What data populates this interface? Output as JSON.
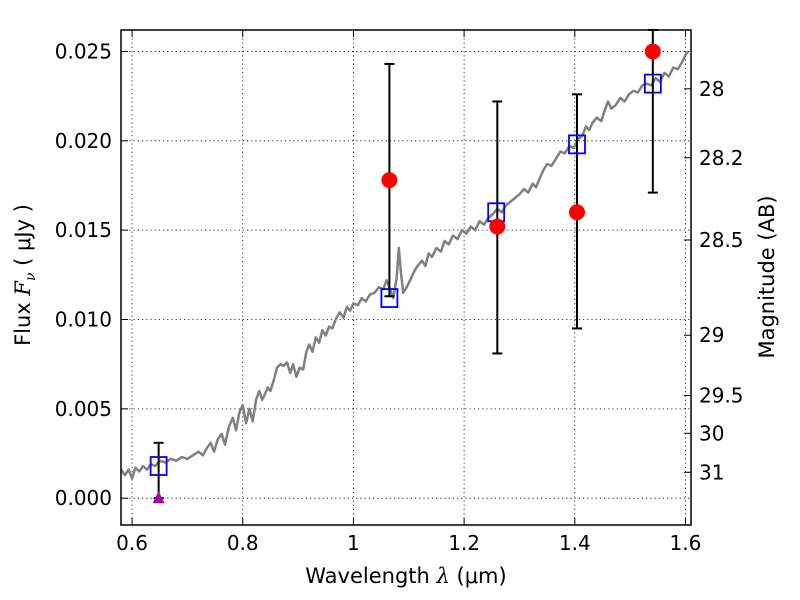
{
  "chart_data": {
    "type": "scatter",
    "xlabel": {
      "prefix": "Wavelength  ",
      "symbol": "λ",
      "unit": " (μm)"
    },
    "ylabel": {
      "prefix": "Flux  ",
      "symbol": "F",
      "subscript": "ν",
      "unit": "  ( μJy )"
    },
    "y2label": "Magnitude (AB)",
    "xlim": [
      0.58,
      1.61
    ],
    "ylim": [
      -0.0015,
      0.0262
    ],
    "grid": true,
    "x_ticks": [
      {
        "value": 0.6,
        "label": "0.6"
      },
      {
        "value": 0.8,
        "label": "0.8"
      },
      {
        "value": 1.0,
        "label": "1"
      },
      {
        "value": 1.2,
        "label": "1.2"
      },
      {
        "value": 1.4,
        "label": "1.4"
      },
      {
        "value": 1.6,
        "label": "1.6"
      }
    ],
    "y_ticks": [
      {
        "value": 0.0,
        "label": "0.000"
      },
      {
        "value": 0.005,
        "label": "0.005"
      },
      {
        "value": 0.01,
        "label": "0.010"
      },
      {
        "value": 0.015,
        "label": "0.015"
      },
      {
        "value": 0.02,
        "label": "0.020"
      },
      {
        "value": 0.025,
        "label": "0.025"
      }
    ],
    "y2_ticks": [
      {
        "flux": 0.02291,
        "label": "28"
      },
      {
        "flux": 0.01905,
        "label": "28.2"
      },
      {
        "flux": 0.01445,
        "label": "28.5"
      },
      {
        "flux": 0.00912,
        "label": "29"
      },
      {
        "flux": 0.00575,
        "label": "29.5"
      },
      {
        "flux": 0.00363,
        "label": "30"
      },
      {
        "flux": 0.00145,
        "label": "31"
      }
    ],
    "series": [
      {
        "kind": "line",
        "color": "#808080",
        "points": [
          [
            0.58,
            0.0016
          ],
          [
            0.587,
            0.0013
          ],
          [
            0.594,
            0.0016
          ],
          [
            0.6,
            0.0011
          ],
          [
            0.606,
            0.0017
          ],
          [
            0.613,
            0.0015
          ],
          [
            0.62,
            0.0018
          ],
          [
            0.627,
            0.0016
          ],
          [
            0.634,
            0.0019
          ],
          [
            0.642,
            0.0018
          ],
          [
            0.65,
            0.0021
          ],
          [
            0.66,
            0.002
          ],
          [
            0.67,
            0.0022
          ],
          [
            0.68,
            0.0021
          ],
          [
            0.69,
            0.0023
          ],
          [
            0.7,
            0.0022
          ],
          [
            0.71,
            0.0024
          ],
          [
            0.72,
            0.0026
          ],
          [
            0.728,
            0.0024
          ],
          [
            0.735,
            0.0028
          ],
          [
            0.742,
            0.0031
          ],
          [
            0.748,
            0.0026
          ],
          [
            0.755,
            0.0033
          ],
          [
            0.762,
            0.0036
          ],
          [
            0.768,
            0.003
          ],
          [
            0.775,
            0.004
          ],
          [
            0.782,
            0.0045
          ],
          [
            0.788,
            0.0038
          ],
          [
            0.794,
            0.0048
          ],
          [
            0.8,
            0.0052
          ],
          [
            0.806,
            0.0042
          ],
          [
            0.812,
            0.005
          ],
          [
            0.818,
            0.0043
          ],
          [
            0.824,
            0.0055
          ],
          [
            0.83,
            0.006
          ],
          [
            0.835,
            0.0055
          ],
          [
            0.84,
            0.0058
          ],
          [
            0.845,
            0.0062
          ],
          [
            0.85,
            0.006
          ],
          [
            0.856,
            0.0066
          ],
          [
            0.862,
            0.0073
          ],
          [
            0.868,
            0.0075
          ],
          [
            0.874,
            0.0074
          ],
          [
            0.88,
            0.0076
          ],
          [
            0.886,
            0.007
          ],
          [
            0.891,
            0.0075
          ],
          [
            0.897,
            0.0068
          ],
          [
            0.903,
            0.0073
          ],
          [
            0.909,
            0.0072
          ],
          [
            0.915,
            0.0082
          ],
          [
            0.92,
            0.0086
          ],
          [
            0.926,
            0.0082
          ],
          [
            0.932,
            0.009
          ],
          [
            0.938,
            0.0087
          ],
          [
            0.944,
            0.0094
          ],
          [
            0.95,
            0.0091
          ],
          [
            0.956,
            0.0096
          ],
          [
            0.962,
            0.0095
          ],
          [
            0.968,
            0.01
          ],
          [
            0.975,
            0.0104
          ],
          [
            0.982,
            0.0101
          ],
          [
            0.988,
            0.0107
          ],
          [
            0.994,
            0.0105
          ],
          [
            1.0,
            0.0109
          ],
          [
            1.008,
            0.0108
          ],
          [
            1.015,
            0.0112
          ],
          [
            1.022,
            0.011
          ],
          [
            1.03,
            0.0114
          ],
          [
            1.038,
            0.0115
          ],
          [
            1.046,
            0.0118
          ],
          [
            1.054,
            0.0117
          ],
          [
            1.06,
            0.0122
          ],
          [
            1.066,
            0.0117
          ],
          [
            1.072,
            0.0112
          ],
          [
            1.078,
            0.0123
          ],
          [
            1.082,
            0.014
          ],
          [
            1.086,
            0.0126
          ],
          [
            1.09,
            0.0115
          ],
          [
            1.096,
            0.0118
          ],
          [
            1.104,
            0.0123
          ],
          [
            1.11,
            0.0127
          ],
          [
            1.116,
            0.013
          ],
          [
            1.124,
            0.0133
          ],
          [
            1.13,
            0.013
          ],
          [
            1.136,
            0.0137
          ],
          [
            1.142,
            0.0135
          ],
          [
            1.15,
            0.014
          ],
          [
            1.158,
            0.0138
          ],
          [
            1.165,
            0.0144
          ],
          [
            1.172,
            0.0142
          ],
          [
            1.18,
            0.0147
          ],
          [
            1.188,
            0.0145
          ],
          [
            1.196,
            0.015
          ],
          [
            1.204,
            0.0148
          ],
          [
            1.212,
            0.0152
          ],
          [
            1.22,
            0.015
          ],
          [
            1.228,
            0.0155
          ],
          [
            1.236,
            0.0153
          ],
          [
            1.244,
            0.0157
          ],
          [
            1.252,
            0.0159
          ],
          [
            1.26,
            0.0162
          ],
          [
            1.268,
            0.016
          ],
          [
            1.276,
            0.0164
          ],
          [
            1.284,
            0.0166
          ],
          [
            1.292,
            0.0168
          ],
          [
            1.3,
            0.017
          ],
          [
            1.308,
            0.0173
          ],
          [
            1.316,
            0.0171
          ],
          [
            1.324,
            0.0176
          ],
          [
            1.33,
            0.0174
          ],
          [
            1.338,
            0.018
          ],
          [
            1.344,
            0.0184
          ],
          [
            1.35,
            0.0187
          ],
          [
            1.358,
            0.0186
          ],
          [
            1.366,
            0.019
          ],
          [
            1.374,
            0.0194
          ],
          [
            1.382,
            0.0193
          ],
          [
            1.39,
            0.0197
          ],
          [
            1.398,
            0.0196
          ],
          [
            1.406,
            0.0201
          ],
          [
            1.414,
            0.0203
          ],
          [
            1.42,
            0.0208
          ],
          [
            1.426,
            0.0206
          ],
          [
            1.432,
            0.021
          ],
          [
            1.44,
            0.0213
          ],
          [
            1.448,
            0.0211
          ],
          [
            1.454,
            0.0217
          ],
          [
            1.46,
            0.0222
          ],
          [
            1.466,
            0.0218
          ],
          [
            1.474,
            0.022
          ],
          [
            1.482,
            0.0224
          ],
          [
            1.49,
            0.0222
          ],
          [
            1.498,
            0.0226
          ],
          [
            1.506,
            0.0228
          ],
          [
            1.514,
            0.0227
          ],
          [
            1.522,
            0.0231
          ],
          [
            1.53,
            0.0232
          ],
          [
            1.538,
            0.0231
          ],
          [
            1.546,
            0.0235
          ],
          [
            1.554,
            0.0233
          ],
          [
            1.562,
            0.0238
          ],
          [
            1.57,
            0.0236
          ],
          [
            1.578,
            0.0241
          ],
          [
            1.586,
            0.024
          ],
          [
            1.594,
            0.0244
          ],
          [
            1.6,
            0.0248
          ],
          [
            1.605,
            0.025
          ]
        ]
      },
      {
        "kind": "open-square",
        "color": "#0000ff",
        "points": [
          [
            0.648,
            0.0018
          ],
          [
            1.065,
            0.0112
          ],
          [
            1.258,
            0.016
          ],
          [
            1.404,
            0.0198
          ],
          [
            1.541,
            0.0232
          ]
        ]
      },
      {
        "kind": "filled-circle",
        "color": "#ff0000",
        "points": [
          [
            1.065,
            0.0178
          ],
          [
            1.26,
            0.0152
          ],
          [
            1.404,
            0.016
          ],
          [
            1.541,
            0.025
          ]
        ]
      },
      {
        "kind": "triangle",
        "color": "#aa00aa",
        "points": [
          [
            0.648,
            0.0
          ]
        ]
      }
    ],
    "error_bars": [
      {
        "x": 0.648,
        "ylow": 0.0,
        "yhigh": 0.0031
      },
      {
        "x": 1.065,
        "ylow": 0.0113,
        "yhigh": 0.0243
      },
      {
        "x": 1.26,
        "ylow": 0.0081,
        "yhigh": 0.0222
      },
      {
        "x": 1.404,
        "ylow": 0.0095,
        "yhigh": 0.0226
      },
      {
        "x": 1.541,
        "ylow": 0.0171,
        "yhigh": 0.0262
      }
    ],
    "errorbar_color": "#000000"
  }
}
